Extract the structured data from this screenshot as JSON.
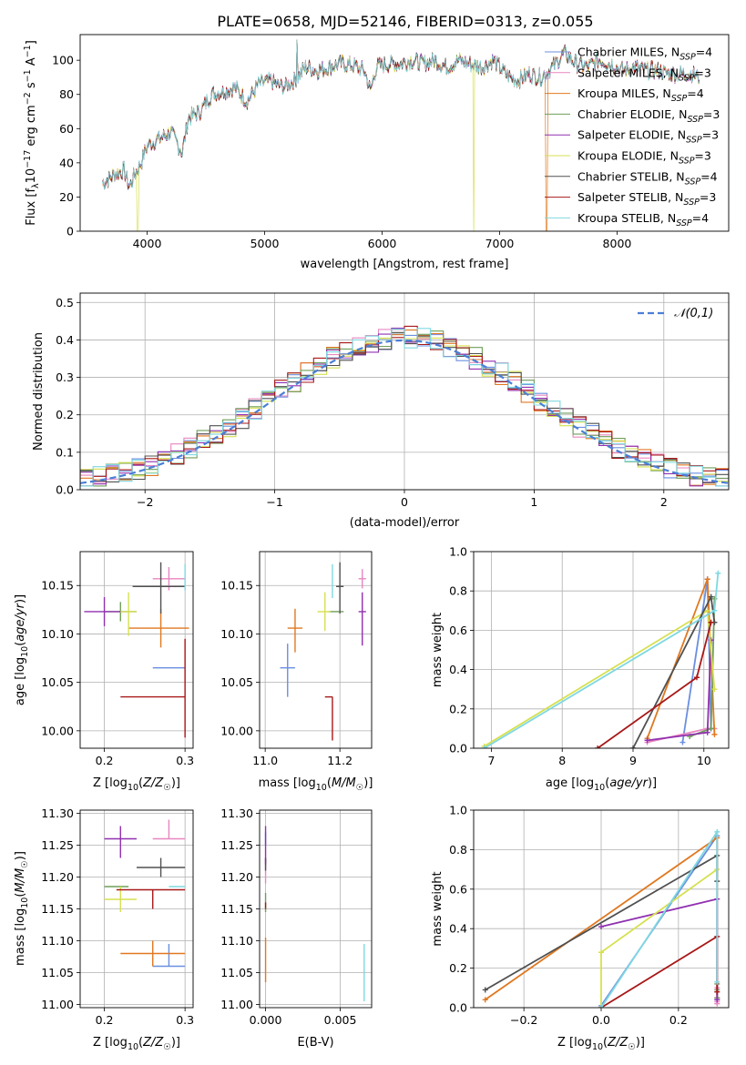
{
  "figure_title": "PLATE=0658, MJD=52146, FIBERID=0313, z=0.055",
  "model_colors": [
    "#6a8fe0",
    "#e886c0",
    "#e07820",
    "#6f9f5a",
    "#9030b0",
    "#d6e050",
    "#505050",
    "#a81818",
    "#7fd8e0"
  ],
  "model_names": [
    "Chabrier MILES",
    "Salpeter MILES",
    "Kroupa MILES",
    "Chabrier ELODIE",
    "Salpeter ELODIE",
    "Kroupa ELODIE",
    "Chabrier STELIB",
    "Salpeter STELIB",
    "Kroupa STELIB"
  ],
  "chart_data": [
    {
      "id": "spectrum",
      "type": "line",
      "title": "PLATE=0658, MJD=52146, FIBERID=0313, z=0.055",
      "xlabel": "wavelength [Angstrom, rest frame]",
      "ylabel": "Flux [f_λ10^-17 erg cm^-2 s^-1 A^-1]",
      "xlim": [
        3430,
        8950
      ],
      "ylim": [
        0,
        115
      ],
      "xticks": [
        4000,
        5000,
        6000,
        7000,
        8000
      ],
      "yticks": [
        0,
        20,
        40,
        60,
        80,
        100
      ],
      "legend_position": "right",
      "legend": [
        {
          "label": "Chabrier MILES",
          "n": "4"
        },
        {
          "label": "Salpeter MILES",
          "n": "3"
        },
        {
          "label": "Kroupa MILES",
          "n": "4"
        },
        {
          "label": "Chabrier ELODIE",
          "n": "3"
        },
        {
          "label": "Salpeter ELODIE",
          "n": "3"
        },
        {
          "label": "Kroupa ELODIE",
          "n": "3"
        },
        {
          "label": "Chabrier STELIB",
          "n": "4"
        },
        {
          "label": "Salpeter STELIB",
          "n": "3"
        },
        {
          "label": "Kroupa STELIB",
          "n": "4"
        }
      ],
      "continuum": [
        [
          3620,
          28
        ],
        [
          3700,
          32
        ],
        [
          3800,
          36
        ],
        [
          3850,
          26
        ],
        [
          3900,
          34
        ],
        [
          3950,
          40
        ],
        [
          4000,
          50
        ],
        [
          4100,
          54
        ],
        [
          4200,
          58
        ],
        [
          4300,
          46
        ],
        [
          4350,
          66
        ],
        [
          4450,
          70
        ],
        [
          4550,
          80
        ],
        [
          4650,
          82
        ],
        [
          4750,
          84
        ],
        [
          4850,
          76
        ],
        [
          4950,
          86
        ],
        [
          5050,
          88
        ],
        [
          5150,
          84
        ],
        [
          5250,
          88
        ],
        [
          5350,
          96
        ],
        [
          5450,
          94
        ],
        [
          5550,
          96
        ],
        [
          5650,
          98
        ],
        [
          5750,
          97
        ],
        [
          5850,
          94
        ],
        [
          5900,
          82
        ],
        [
          5950,
          96
        ],
        [
          6050,
          98
        ],
        [
          6150,
          98
        ],
        [
          6250,
          100
        ],
        [
          6350,
          98
        ],
        [
          6450,
          100
        ],
        [
          6550,
          96
        ],
        [
          6650,
          100
        ],
        [
          6750,
          98
        ],
        [
          6850,
          96
        ],
        [
          6950,
          100
        ],
        [
          7050,
          92
        ],
        [
          7150,
          88
        ],
        [
          7250,
          92
        ],
        [
          7350,
          90
        ],
        [
          7450,
          96
        ],
        [
          7550,
          104
        ],
        [
          7650,
          98
        ],
        [
          7750,
          96
        ],
        [
          7850,
          100
        ],
        [
          7950,
          98
        ],
        [
          8050,
          94
        ],
        [
          8150,
          96
        ],
        [
          8250,
          94
        ],
        [
          8350,
          94
        ],
        [
          8450,
          92
        ],
        [
          8550,
          92
        ],
        [
          8650,
          92
        ],
        [
          8700,
          90
        ]
      ],
      "dropouts": [
        {
          "x": 3920,
          "series": 5
        },
        {
          "x": 6780,
          "series": 5
        },
        {
          "x": 7400,
          "series": 2
        }
      ]
    },
    {
      "id": "residuals",
      "type": "step",
      "xlabel": "(data-model)/error",
      "ylabel": "Normed distribution",
      "xlim": [
        -2.5,
        2.5
      ],
      "ylim": [
        0,
        0.525
      ],
      "xticks": [
        -2,
        -1,
        0,
        1,
        2
      ],
      "yticks": [
        0.0,
        0.1,
        0.2,
        0.3,
        0.4,
        0.5
      ],
      "bin_width": 0.1,
      "reference_label": "𝒩(0,1)",
      "legend_position": "top-right"
    },
    {
      "id": "age_vs_Z",
      "type": "errorbar",
      "xlabel": "Z [log10(Z/Z☉)]",
      "ylabel": "age [log10(age/yr)]",
      "xlim": [
        0.17,
        0.31
      ],
      "ylim": [
        9.982,
        10.185
      ],
      "xticks": [
        0.2,
        0.3
      ],
      "yticks": [
        10.0,
        10.05,
        10.1,
        10.15
      ],
      "points": [
        {
          "x": 0.28,
          "y": 10.065,
          "xerr": [
            0.02,
            0.02
          ],
          "yerr": [
            0,
            0
          ]
        },
        {
          "x": 0.28,
          "y": 10.157,
          "xerr": [
            0.02,
            0.02
          ],
          "yerr": [
            0.012,
            0.012
          ]
        },
        {
          "x": 0.27,
          "y": 10.106,
          "xerr": [
            0.04,
            0.035
          ],
          "yerr": [
            0.02,
            0.02
          ]
        },
        {
          "x": 0.22,
          "y": 10.123,
          "xerr": [
            0.02,
            0.02
          ],
          "yerr": [
            0.01,
            0.01
          ]
        },
        {
          "x": 0.2,
          "y": 10.123,
          "xerr": [
            0.025,
            0.02
          ],
          "yerr": [
            0.015,
            0.015
          ]
        },
        {
          "x": 0.23,
          "y": 10.123,
          "xerr": [
            0.01,
            0.01
          ],
          "yerr": [
            0.025,
            0.02
          ]
        },
        {
          "x": 0.27,
          "y": 10.149,
          "xerr": [
            0.035,
            0.03
          ],
          "yerr": [
            0.028,
            0.025
          ]
        },
        {
          "x": 0.3,
          "y": 10.035,
          "xerr": [
            0.08,
            0.0
          ],
          "yerr": [
            0.042,
            0.06
          ]
        },
        {
          "x": 0.3,
          "y": 10.16,
          "xerr": [
            0.0,
            0.0
          ],
          "yerr": [
            0.015,
            0.012
          ]
        }
      ]
    },
    {
      "id": "age_vs_mass",
      "type": "errorbar",
      "xlabel": "mass [log10(M/M☉)]",
      "ylabel": "",
      "xlim": [
        10.985,
        11.285
      ],
      "ylim": [
        9.982,
        10.185
      ],
      "xticks": [
        11.0,
        11.2
      ],
      "yticks": [
        10.0,
        10.05,
        10.1,
        10.15
      ],
      "points": [
        {
          "x": 11.06,
          "y": 10.065,
          "xerr": [
            0.02,
            0.02
          ],
          "yerr": [
            0.03,
            0.025
          ]
        },
        {
          "x": 11.26,
          "y": 10.157,
          "xerr": [
            0.01,
            0.01
          ],
          "yerr": [
            0.01,
            0.01
          ]
        },
        {
          "x": 11.08,
          "y": 10.106,
          "xerr": [
            0.02,
            0.02
          ],
          "yerr": [
            0.025,
            0.02
          ]
        },
        {
          "x": 11.19,
          "y": 10.123,
          "xerr": [
            0.02,
            0.02
          ],
          "yerr": [
            0.0,
            0.0
          ]
        },
        {
          "x": 11.26,
          "y": 10.123,
          "xerr": [
            0.01,
            0.01
          ],
          "yerr": [
            0.035,
            0.02
          ]
        },
        {
          "x": 11.16,
          "y": 10.123,
          "xerr": [
            0.02,
            0.015
          ],
          "yerr": [
            0.02,
            0.02
          ]
        },
        {
          "x": 11.2,
          "y": 10.149,
          "xerr": [
            0.01,
            0.01
          ],
          "yerr": [
            0.028,
            0.025
          ]
        },
        {
          "x": 11.18,
          "y": 10.035,
          "xerr": [
            0.02,
            0.0
          ],
          "yerr": [
            0.045,
            0.0
          ]
        },
        {
          "x": 11.18,
          "y": 10.157,
          "xerr": [
            0.0,
            0.0
          ],
          "yerr": [
            0.02,
            0.015
          ]
        }
      ]
    },
    {
      "id": "mass_weight_vs_age",
      "type": "line",
      "xlabel": "age [log10(age/yr)]",
      "ylabel": "mass weight",
      "xlim": [
        6.75,
        10.35
      ],
      "ylim": [
        0,
        1.0
      ],
      "xticks": [
        7,
        8,
        9,
        10
      ],
      "yticks": [
        0.0,
        0.2,
        0.4,
        0.6,
        0.8,
        1.0
      ],
      "series": [
        {
          "x": [
            9.7,
            10.05,
            10.1,
            10.1
          ],
          "y": [
            0.03,
            0.86,
            0.1,
            0.1
          ]
        },
        {
          "x": [
            9.2,
            10.05,
            10.15
          ],
          "y": [
            0.03,
            0.1,
            0.1
          ]
        },
        {
          "x": [
            9.2,
            10.05,
            10.15
          ],
          "y": [
            0.05,
            0.86,
            0.07
          ]
        },
        {
          "x": [
            9.8,
            10.1,
            10.15
          ],
          "y": [
            0.06,
            0.1,
            0.76
          ]
        },
        {
          "x": [
            9.2,
            10.05,
            10.1
          ],
          "y": [
            0.04,
            0.08,
            0.55
          ]
        },
        {
          "x": [
            6.9,
            10.05,
            10.15
          ],
          "y": [
            0.01,
            0.7,
            0.3
          ]
        },
        {
          "x": [
            9.0,
            10.1,
            10.15
          ],
          "y": [
            0.0,
            0.77,
            0.64
          ]
        },
        {
          "x": [
            8.5,
            9.9,
            10.1
          ],
          "y": [
            0.0,
            0.36,
            0.64
          ]
        },
        {
          "x": [
            6.9,
            10.15,
            10.2
          ],
          "y": [
            0.0,
            0.7,
            0.89
          ]
        }
      ]
    },
    {
      "id": "mass_vs_Z",
      "type": "errorbar",
      "xlabel": "Z [log10(Z/Z☉)]",
      "ylabel": "mass [log10(M/M☉)]",
      "xlim": [
        0.17,
        0.31
      ],
      "ylim": [
        10.995,
        11.305
      ],
      "xticks": [
        0.2,
        0.3
      ],
      "yticks": [
        11.0,
        11.05,
        11.1,
        11.15,
        11.2,
        11.25,
        11.3
      ],
      "points": [
        {
          "x": 0.28,
          "y": 11.06,
          "xerr": [
            0.02,
            0.02
          ],
          "yerr": [
            0.0,
            0.035
          ]
        },
        {
          "x": 0.28,
          "y": 11.26,
          "xerr": [
            0.02,
            0.02
          ],
          "yerr": [
            0.0,
            0.03
          ]
        },
        {
          "x": 0.26,
          "y": 11.08,
          "xerr": [
            0.04,
            0.04
          ],
          "yerr": [
            0.02,
            0.02
          ]
        },
        {
          "x": 0.22,
          "y": 11.185,
          "xerr": [
            0.02,
            0.01
          ],
          "yerr": [
            0.0,
            0.0
          ]
        },
        {
          "x": 0.22,
          "y": 11.26,
          "xerr": [
            0.02,
            0.02
          ],
          "yerr": [
            0.03,
            0.02
          ]
        },
        {
          "x": 0.22,
          "y": 11.165,
          "xerr": [
            0.02,
            0.02
          ],
          "yerr": [
            0.02,
            0.02
          ]
        },
        {
          "x": 0.27,
          "y": 11.215,
          "xerr": [
            0.03,
            0.03
          ],
          "yerr": [
            0.015,
            0.015
          ]
        },
        {
          "x": 0.26,
          "y": 11.18,
          "xerr": [
            0.045,
            0.04
          ],
          "yerr": [
            0.03,
            0.0
          ]
        },
        {
          "x": 0.3,
          "y": 11.185,
          "xerr": [
            0.02,
            0.0
          ],
          "yerr": [
            0.0,
            0.0
          ]
        }
      ]
    },
    {
      "id": "mass_vs_ebv",
      "type": "errorbar",
      "xlabel": "E(B-V)",
      "ylabel": "",
      "xlim": [
        -0.0004,
        0.0071
      ],
      "ylim": [
        10.995,
        11.305
      ],
      "xticks": [
        0.0,
        0.005
      ],
      "yticks": [
        11.0,
        11.05,
        11.1,
        11.15,
        11.2,
        11.25,
        11.3
      ],
      "points": [
        {
          "x": 0.0,
          "y": 11.26,
          "xerr": [
            0,
            0
          ],
          "yerr": [
            0.01,
            0.01
          ]
        },
        {
          "x": 0.0,
          "y": 11.21,
          "xerr": [
            0,
            0
          ],
          "yerr": [
            0.02,
            0.02
          ]
        },
        {
          "x": 0.0,
          "y": 11.07,
          "xerr": [
            0,
            0
          ],
          "yerr": [
            0.035,
            0.035
          ]
        },
        {
          "x": 0.0,
          "y": 11.16,
          "xerr": [
            0,
            0
          ],
          "yerr": [
            0.015,
            0.015
          ]
        },
        {
          "x": 0.0,
          "y": 11.25,
          "xerr": [
            0,
            0
          ],
          "yerr": [
            0.03,
            0.03
          ]
        },
        {
          "x": 0.0,
          "y": 11.2,
          "xerr": [
            0,
            0
          ],
          "yerr": [
            0.0,
            0.0
          ]
        },
        {
          "x": 0.0,
          "y": 11.22,
          "xerr": [
            0,
            0
          ],
          "yerr": [
            0.01,
            0.01
          ]
        },
        {
          "x": 0.0,
          "y": 11.16,
          "xerr": [
            0,
            0
          ],
          "yerr": [
            0.01,
            0.0
          ]
        },
        {
          "x": 0.0066,
          "y": 11.05,
          "xerr": [
            0,
            0
          ],
          "yerr": [
            0.045,
            0.045
          ]
        }
      ]
    },
    {
      "id": "mass_weight_vs_Z",
      "type": "line",
      "xlabel": "Z [log10(Z/Z☉)]",
      "ylabel": "mass weight",
      "xlim": [
        -0.33,
        0.33
      ],
      "ylim": [
        0,
        1.0
      ],
      "xticks": [
        -0.2,
        0.0,
        0.2
      ],
      "yticks": [
        0.0,
        0.2,
        0.4,
        0.6,
        0.8,
        1.0
      ],
      "series": [
        {
          "x": [
            0.0,
            0.3,
            0.3
          ],
          "y": [
            0.01,
            0.87,
            0.04
          ]
        },
        {
          "x": [
            0.3,
            0.3,
            0.3
          ],
          "y": [
            0.1,
            0.03,
            0.02
          ]
        },
        {
          "x": [
            -0.3,
            0.3,
            0.3
          ],
          "y": [
            0.04,
            0.86,
            0.05
          ]
        },
        {
          "x": [
            0.3,
            0.3,
            0.3
          ],
          "y": [
            0.05,
            0.09,
            0.12
          ]
        },
        {
          "x": [
            0.0,
            0.3,
            0.3
          ],
          "y": [
            0.41,
            0.55,
            0.04
          ]
        },
        {
          "x": [
            0.0,
            0.0,
            0.3
          ],
          "y": [
            0.0,
            0.28,
            0.7
          ]
        },
        {
          "x": [
            -0.3,
            0.3,
            0.3
          ],
          "y": [
            0.09,
            0.77,
            0.64
          ]
        },
        {
          "x": [
            0.0,
            0.3,
            0.3
          ],
          "y": [
            0.0,
            0.36,
            0.08
          ]
        },
        {
          "x": [
            0.0,
            0.3,
            0.3
          ],
          "y": [
            0.0,
            0.89,
            0.13
          ]
        }
      ]
    }
  ]
}
